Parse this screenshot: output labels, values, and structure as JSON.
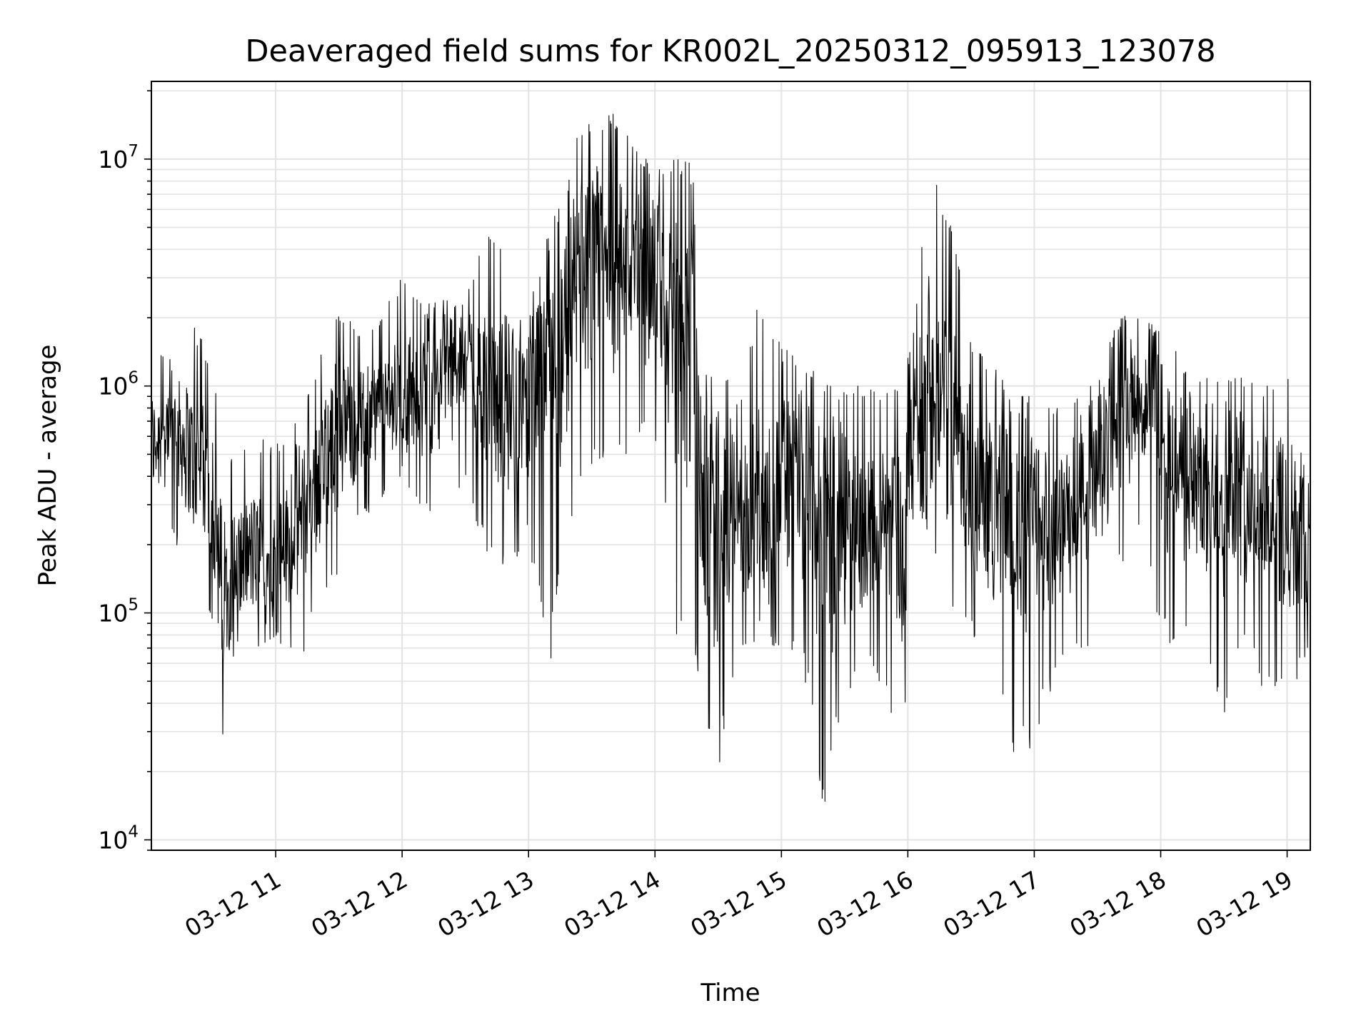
{
  "chart_data": {
    "type": "line",
    "title": "Deaveraged field sums for KR002L_20250312_095913_123078",
    "xlabel": "Time",
    "ylabel": "Peak ADU - average",
    "yscale": "log",
    "ylim": [
      9000,
      22000000
    ],
    "xlim": [
      "03-12 10:01",
      "03-12 19:11"
    ],
    "grid": true,
    "x_tick_labels": [
      "03-12 11",
      "03-12 12",
      "03-12 13",
      "03-12 14",
      "03-12 15",
      "03-12 16",
      "03-12 17",
      "03-12 18",
      "03-12 19"
    ],
    "y_tick_labels": [
      {
        "base": "10",
        "exp": "4"
      },
      {
        "base": "10",
        "exp": "5"
      },
      {
        "base": "10",
        "exp": "6"
      },
      {
        "base": "10",
        "exp": "7"
      }
    ],
    "series": [
      {
        "color": "#000000",
        "x": [
          "03-12 10:01",
          "03-12 10:10",
          "03-12 10:20",
          "03-12 10:30",
          "03-12 10:35",
          "03-12 10:41",
          "03-12 10:50",
          "03-12 11:00",
          "03-12 11:10",
          "03-12 11:20",
          "03-12 11:30",
          "03-12 11:40",
          "03-12 11:50",
          "03-12 12:00",
          "03-12 12:10",
          "03-12 12:20",
          "03-12 12:30",
          "03-12 12:40",
          "03-12 12:50",
          "03-12 13:00",
          "03-12 13:10",
          "03-12 13:20",
          "03-12 13:30",
          "03-12 13:40",
          "03-12 13:50",
          "03-12 14:00",
          "03-12 14:10",
          "03-12 14:18",
          "03-12 14:22",
          "03-12 14:30",
          "03-12 14:40",
          "03-12 14:50",
          "03-12 15:00",
          "03-12 15:10",
          "03-12 15:20",
          "03-12 15:30",
          "03-12 15:40",
          "03-12 15:50",
          "03-12 15:58",
          "03-12 16:03",
          "03-12 16:10",
          "03-12 16:20",
          "03-12 16:30",
          "03-12 16:40",
          "03-12 16:50",
          "03-12 17:00",
          "03-12 17:10",
          "03-12 17:20",
          "03-12 17:30",
          "03-12 17:40",
          "03-12 17:50",
          "03-12 18:00",
          "03-12 18:10",
          "03-12 18:20",
          "03-12 18:30",
          "03-12 18:40",
          "03-12 18:50",
          "03-12 19:00",
          "03-12 19:11"
        ],
        "y": [
          550000,
          700000,
          500000,
          350000,
          120000,
          160000,
          180000,
          160000,
          250000,
          400000,
          650000,
          700000,
          800000,
          900000,
          1000000,
          1100000,
          1200000,
          1000000,
          850000,
          900000,
          1300000,
          2500000,
          3000000,
          3500000,
          3200000,
          2800000,
          2800000,
          2000000,
          280000,
          260000,
          250000,
          280000,
          350000,
          400000,
          300000,
          230000,
          230000,
          260000,
          200000,
          700000,
          1000000,
          700000,
          400000,
          300000,
          250000,
          300000,
          280000,
          300000,
          400000,
          700000,
          900000,
          600000,
          450000,
          350000,
          350000,
          320000,
          280000,
          280000,
          220000
        ],
        "ymin": [
          200000,
          220000,
          150000,
          90000,
          23000,
          70000,
          60000,
          80000,
          55000,
          100000,
          150000,
          250000,
          300000,
          400000,
          250000,
          300000,
          350000,
          170000,
          150000,
          200000,
          55000,
          250000,
          400000,
          450000,
          500000,
          600000,
          75000,
          80000,
          40000,
          20000,
          60000,
          60000,
          70000,
          60000,
          13000,
          40000,
          60000,
          40000,
          26000,
          300000,
          200000,
          100000,
          80000,
          55000,
          20000,
          27000,
          50000,
          60000,
          80000,
          150000,
          250000,
          70000,
          70000,
          80000,
          33000,
          70000,
          43000,
          45000,
          60000
        ],
        "ymax": [
          1300000,
          1500000,
          2000000,
          1300000,
          500000,
          500000,
          600000,
          550000,
          700000,
          1300000,
          2100000,
          1800000,
          2000000,
          3100000,
          2500000,
          2400000,
          2400000,
          4900000,
          4500000,
          4000000,
          4500000,
          14000000,
          15000000,
          16000000,
          12000000,
          9000000,
          10000000,
          9500000,
          1000000,
          1600000,
          800000,
          2700000,
          1500000,
          1300000,
          1100000,
          1000000,
          1000000,
          1000000,
          1000000,
          2000000,
          9000000,
          6000000,
          1700000,
          1300000,
          900000,
          900000,
          800000,
          900000,
          1100000,
          2000000,
          2200000,
          1800000,
          1300000,
          1100000,
          1100000,
          1100000,
          1000000,
          1200000,
          1200000
        ]
      }
    ]
  }
}
